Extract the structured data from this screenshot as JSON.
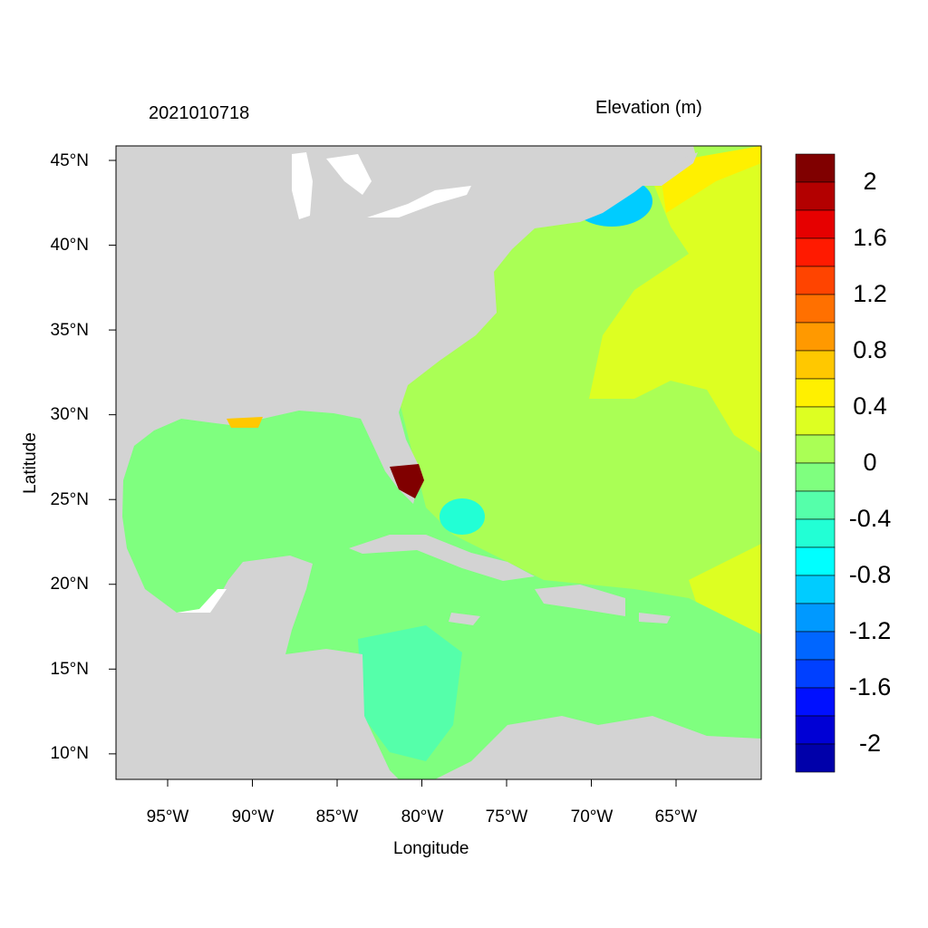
{
  "title_left": "2021010718",
  "title_right": "Elevation (m)",
  "xlabel": "Longitude",
  "ylabel": "Latitude",
  "x_ticks": [
    "95°W",
    "90°W",
    "85°W",
    "80°W",
    "75°W",
    "70°W",
    "65°W"
  ],
  "y_ticks": [
    "45°N",
    "40°N",
    "35°N",
    "30°N",
    "25°N",
    "20°N",
    "15°N",
    "10°N"
  ],
  "colorbar": {
    "labels": [
      "2",
      "1.6",
      "1.2",
      "0.8",
      "0.4",
      "0",
      "-0.4",
      "-0.8",
      "-1.2",
      "-1.6",
      "-2"
    ],
    "colors": [
      "#800000",
      "#b30000",
      "#e60000",
      "#ff1a00",
      "#ff4400",
      "#ff7000",
      "#ff9900",
      "#ffc800",
      "#fff000",
      "#ddff22",
      "#aaff55",
      "#7fff7f",
      "#55ffaa",
      "#22ffd5",
      "#00ffff",
      "#00ccff",
      "#0099ff",
      "#0066ff",
      "#0040ff",
      "#0010ff",
      "#0000d5",
      "#0000aa"
    ],
    "range": [
      -2.2,
      2.2
    ],
    "step": 0.2
  },
  "colors": {
    "land": "#d3d3d3",
    "atlantic": "#aaff55",
    "gulf": "#7fff7f"
  },
  "chart_data": {
    "type": "heatmap",
    "title": "2021010718",
    "subtitle": "Elevation (m)",
    "xlabel": "Longitude",
    "ylabel": "Latitude",
    "xlim": [
      -98,
      -60
    ],
    "ylim": [
      8.5,
      45.9
    ]
  }
}
